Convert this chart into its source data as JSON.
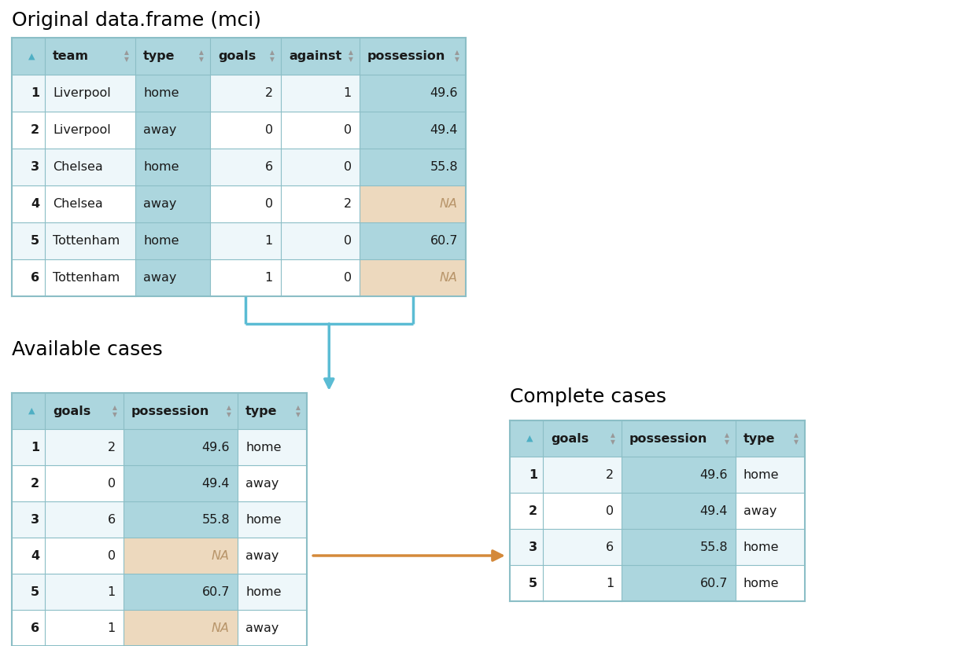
{
  "title_main": "Original data.frame (mci)",
  "title_avail": "Available cases",
  "title_complete": "Complete cases",
  "main_cols": [
    "team",
    "type",
    "goals",
    "against",
    "possession"
  ],
  "main_rows": [
    [
      "Liverpool",
      "home",
      "2",
      "1",
      "49.6"
    ],
    [
      "Liverpool",
      "away",
      "0",
      "0",
      "49.4"
    ],
    [
      "Chelsea",
      "home",
      "6",
      "0",
      "55.8"
    ],
    [
      "Chelsea",
      "away",
      "0",
      "2",
      "NA"
    ],
    [
      "Tottenham",
      "home",
      "1",
      "0",
      "60.7"
    ],
    [
      "Tottenham",
      "away",
      "1",
      "0",
      "NA"
    ]
  ],
  "main_na_rows": [
    3,
    5
  ],
  "avail_cols": [
    "goals",
    "possession",
    "type"
  ],
  "avail_rows": [
    [
      "2",
      "49.6",
      "home"
    ],
    [
      "0",
      "49.4",
      "away"
    ],
    [
      "6",
      "55.8",
      "home"
    ],
    [
      "0",
      "NA",
      "away"
    ],
    [
      "1",
      "60.7",
      "home"
    ],
    [
      "1",
      "NA",
      "away"
    ]
  ],
  "avail_na_rows": [
    3,
    5
  ],
  "complete_cols": [
    "goals",
    "possession",
    "type"
  ],
  "complete_rows": [
    [
      "2",
      "49.6",
      "home"
    ],
    [
      "0",
      "49.4",
      "away"
    ],
    [
      "6",
      "55.8",
      "home"
    ],
    [
      "1",
      "60.7",
      "home"
    ]
  ],
  "complete_row_labels": [
    "1",
    "2",
    "3",
    "5"
  ],
  "color_header": "#acd6de",
  "color_row_odd": "#eef7fa",
  "color_row_even": "#ffffff",
  "color_na_bg": "#edd9be",
  "color_na_text": "#b8956a",
  "color_border": "#8bbec6",
  "color_text_dark": "#1a1a1a",
  "color_arrow_cyan": "#5bbcd4",
  "color_arrow_orange": "#d4893a",
  "color_sort_blue": "#4eafc4",
  "color_sort_inactive": "#999999"
}
